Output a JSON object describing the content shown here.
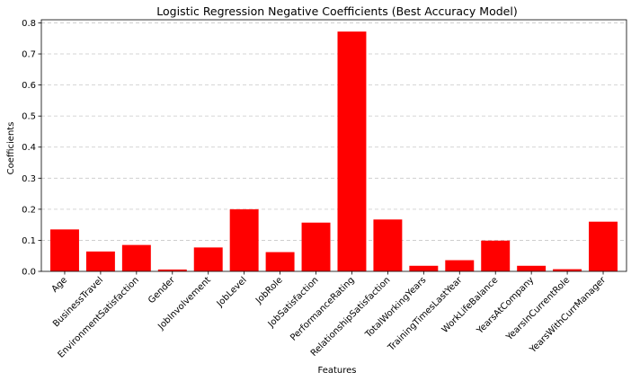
{
  "chart_data": {
    "type": "bar",
    "title": "Logistic Regression Negative Coefficients (Best Accuracy Model)",
    "xlabel": "Features",
    "ylabel": "Coefficients",
    "categories": [
      "Age",
      "BusinessTravel",
      "EnvironmentSatisfaction",
      "Gender",
      "JobInvolvement",
      "JobLevel",
      "JobRole",
      "JobSatisfaction",
      "PerformanceRating",
      "RelationshipSatisfaction",
      "TotalWorkingYears",
      "TrainingTimesLastYear",
      "WorkLifeBalance",
      "YearsAtCompany",
      "YearsInCurrentRole",
      "YearsWithCurrManager"
    ],
    "values": [
      0.135,
      0.064,
      0.085,
      0.006,
      0.077,
      0.2,
      0.062,
      0.157,
      0.772,
      0.167,
      0.018,
      0.036,
      0.099,
      0.018,
      0.007,
      0.16
    ],
    "yticks": [
      "0.0",
      "0.1",
      "0.2",
      "0.3",
      "0.4",
      "0.5",
      "0.6",
      "0.7",
      "0.8"
    ],
    "ylim": [
      0,
      0.81
    ],
    "grid": "y-dashed",
    "bar_color": "#ff0000",
    "grid_color": "#c8c8c8"
  }
}
